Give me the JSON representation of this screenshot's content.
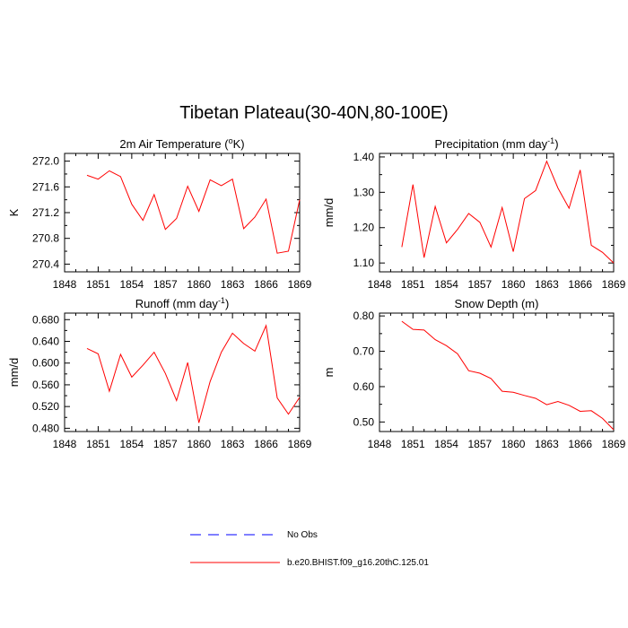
{
  "title": "Tibetan Plateau(30-40N,80-100E)",
  "colors": {
    "model": "#ff0000",
    "obs": "#0000ff",
    "axis": "#000000"
  },
  "legend": {
    "obs_label": "No Obs",
    "model_label": "b.e20.BHIST.f09_g16.20thC.125.01"
  },
  "chart_data": [
    {
      "type": "line",
      "title": "2m Air Temperature (",
      "title_sup": "o",
      "title_after": "K)",
      "ylabel": "K",
      "xlim": [
        1848,
        1869
      ],
      "ylim": [
        270.28,
        272.12
      ],
      "xticks": [
        "1848",
        "1851",
        "1854",
        "1857",
        "1860",
        "1863",
        "1866",
        "1869"
      ],
      "yticks": [
        "270.4",
        "270.8",
        "271.2",
        "271.6",
        "272.0"
      ],
      "series": [
        {
          "x": [
            1850,
            1851,
            1852,
            1853,
            1854,
            1855,
            1856,
            1857,
            1858,
            1859,
            1860,
            1861,
            1862,
            1863,
            1864,
            1865,
            1866,
            1867,
            1868,
            1869
          ],
          "values": [
            271.78,
            271.72,
            271.85,
            271.76,
            271.33,
            271.08,
            271.48,
            270.94,
            271.11,
            271.61,
            271.22,
            271.71,
            271.62,
            271.72,
            270.95,
            271.13,
            271.41,
            270.57,
            270.6,
            271.4
          ]
        }
      ]
    },
    {
      "type": "line",
      "title": "Precipitation (mm day",
      "title_sup": "-1",
      "title_after": ")",
      "ylabel": "mm/d",
      "xlim": [
        1848,
        1869
      ],
      "ylim": [
        1.075,
        1.41
      ],
      "xticks": [
        "1848",
        "1851",
        "1854",
        "1857",
        "1860",
        "1863",
        "1866",
        "1869"
      ],
      "yticks": [
        "1.10",
        "1.20",
        "1.30",
        "1.40"
      ],
      "series": [
        {
          "x": [
            1850,
            1851,
            1852,
            1853,
            1854,
            1855,
            1856,
            1857,
            1858,
            1859,
            1860,
            1861,
            1862,
            1863,
            1864,
            1865,
            1866,
            1867,
            1868,
            1869
          ],
          "values": [
            1.145,
            1.322,
            1.115,
            1.26,
            1.157,
            1.195,
            1.24,
            1.215,
            1.145,
            1.257,
            1.132,
            1.282,
            1.305,
            1.388,
            1.312,
            1.255,
            1.363,
            1.15,
            1.13,
            1.1
          ]
        }
      ]
    },
    {
      "type": "line",
      "title": "Runoff (mm day",
      "title_sup": "-1",
      "title_after": ")",
      "ylabel": "mm/d",
      "xlim": [
        1848,
        1869
      ],
      "ylim": [
        0.474,
        0.692
      ],
      "xticks": [
        "1848",
        "1851",
        "1854",
        "1857",
        "1860",
        "1863",
        "1866",
        "1869"
      ],
      "yticks": [
        "0.480",
        "0.520",
        "0.560",
        "0.600",
        "0.640",
        "0.680"
      ],
      "series": [
        {
          "x": [
            1850,
            1851,
            1852,
            1853,
            1854,
            1855,
            1856,
            1857,
            1858,
            1859,
            1860,
            1861,
            1862,
            1863,
            1864,
            1865,
            1866,
            1867,
            1868,
            1869
          ],
          "values": [
            0.627,
            0.617,
            0.548,
            0.616,
            0.574,
            0.596,
            0.62,
            0.581,
            0.531,
            0.601,
            0.49,
            0.566,
            0.62,
            0.655,
            0.636,
            0.622,
            0.669,
            0.536,
            0.506,
            0.537
          ]
        }
      ]
    },
    {
      "type": "line",
      "title": "Snow Depth (m)",
      "title_sup": "",
      "title_after": "",
      "ylabel": "m",
      "xlim": [
        1848,
        1869
      ],
      "ylim": [
        0.473,
        0.808
      ],
      "xticks": [
        "1848",
        "1851",
        "1854",
        "1857",
        "1860",
        "1863",
        "1866",
        "1869"
      ],
      "yticks": [
        "0.50",
        "0.60",
        "0.70",
        "0.80"
      ],
      "series": [
        {
          "x": [
            1850,
            1851,
            1852,
            1853,
            1854,
            1855,
            1856,
            1857,
            1858,
            1859,
            1860,
            1861,
            1862,
            1863,
            1864,
            1865,
            1866,
            1867,
            1868,
            1869
          ],
          "values": [
            0.785,
            0.762,
            0.76,
            0.733,
            0.716,
            0.693,
            0.645,
            0.638,
            0.623,
            0.587,
            0.584,
            0.575,
            0.567,
            0.549,
            0.558,
            0.547,
            0.53,
            0.532,
            0.51,
            0.478
          ]
        }
      ]
    }
  ]
}
